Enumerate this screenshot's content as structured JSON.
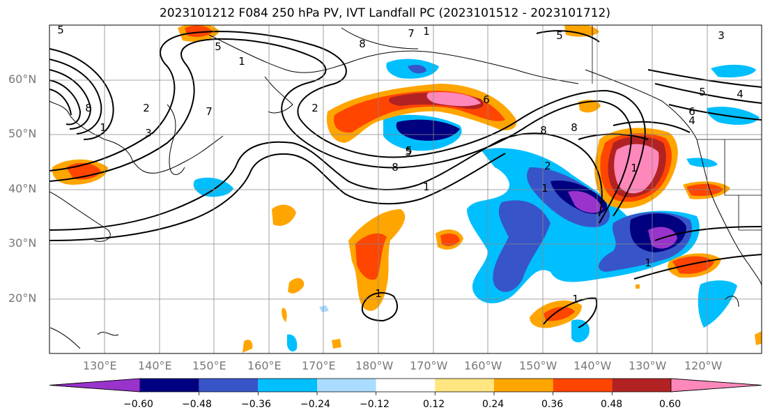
{
  "title": "2023101212 F084 250 hPa PV, IVT Landfall PC (2023101512 - 2023101712)",
  "lat_labels": [
    "60°N",
    "50°N",
    "40°N",
    "30°N",
    "20°N"
  ],
  "lon_labels": [
    "130°E",
    "140°E",
    "150°E",
    "160°E",
    "170°E",
    "180°W",
    "170°W",
    "160°W",
    "150°W",
    "140°W",
    "130°W",
    "120°W"
  ],
  "colorbar": {
    "colors": [
      "#9933cc",
      "#000080",
      "#3755c8",
      "#00bfff",
      "#aadcff",
      "#ffffff",
      "#ffe680",
      "#ffa500",
      "#ff4500",
      "#b22222",
      "#ff88bb"
    ],
    "ticks": [
      "−0.60",
      "−0.48",
      "−0.36",
      "−0.24",
      "−0.12",
      "0.12",
      "0.24",
      "0.36",
      "0.48",
      "0.60"
    ]
  },
  "contour_labels": [
    "5",
    "8",
    "1",
    "2",
    "3",
    "5",
    "7",
    "8",
    "2",
    "1",
    "5",
    "8",
    "1",
    "6",
    "8",
    "8",
    "7",
    "5",
    "2",
    "1",
    "1",
    "1",
    "1",
    "3",
    "4",
    "5",
    "6",
    "4",
    "1",
    "1",
    "5"
  ]
}
